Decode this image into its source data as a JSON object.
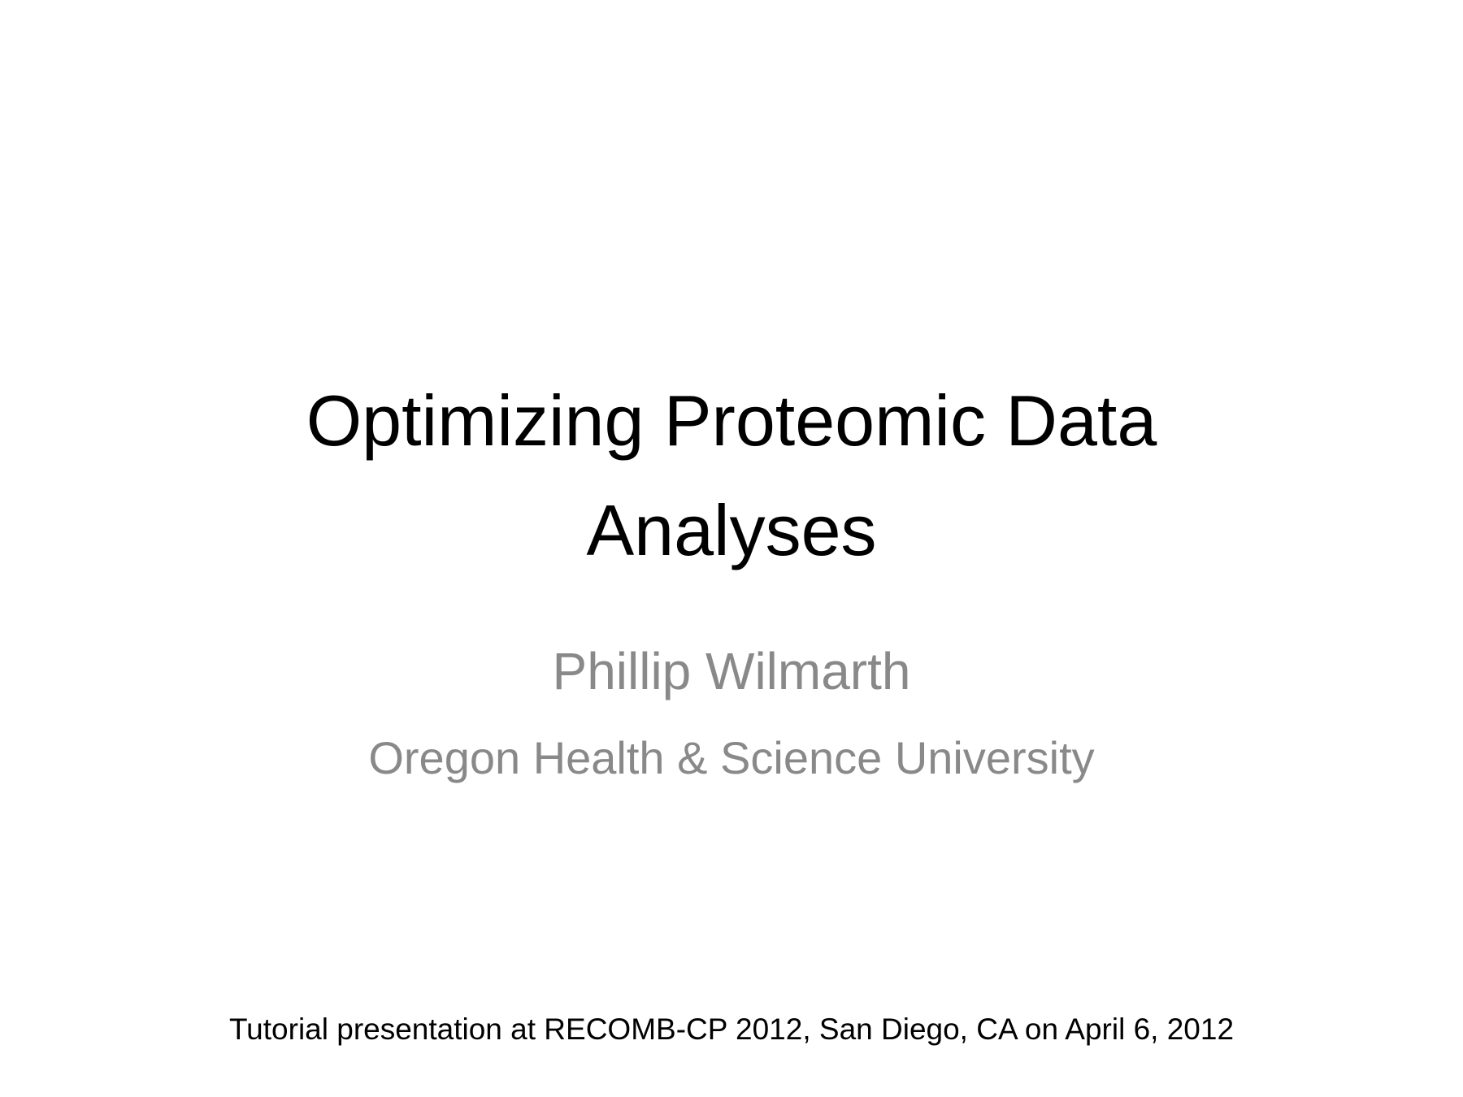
{
  "slide": {
    "title_lines": [
      "Optimizing Proteomic Data",
      "Analyses"
    ],
    "author": "Phillip Wilmarth",
    "affiliation": "Oregon Health & Science University",
    "footer": "Tutorial presentation at RECOMB-CP 2012, San Diego, CA on April 6, 2012",
    "colors": {
      "background": "#ffffff",
      "title": "#000000",
      "subtitle": "#898989",
      "footer": "#000000"
    }
  }
}
